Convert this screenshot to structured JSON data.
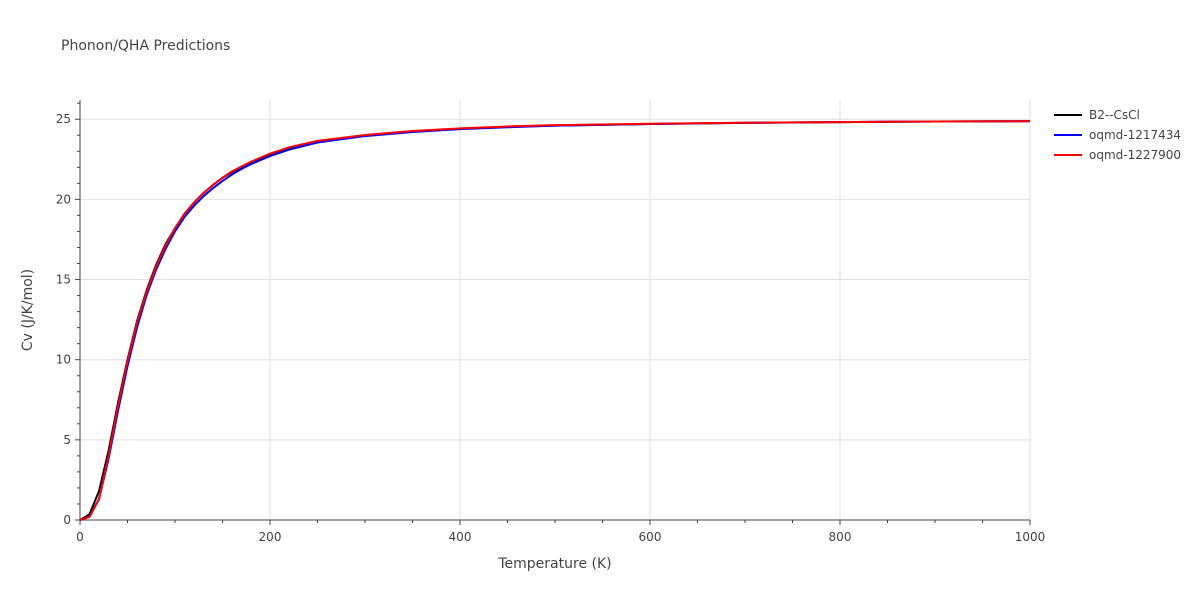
{
  "chart_data": {
    "type": "line",
    "title": "Phonon/QHA Predictions",
    "xlabel": "Temperature (K)",
    "ylabel": "Cv (J/K/mol)",
    "xlim": [
      0,
      1000
    ],
    "ylim": [
      0,
      26.2
    ],
    "xticks": [
      0,
      200,
      400,
      600,
      800,
      1000
    ],
    "yticks": [
      0,
      5,
      10,
      15,
      20,
      25
    ],
    "grid": true,
    "legend_position": "top-right",
    "series": [
      {
        "name": "B2--CsCl",
        "color": "#000000",
        "x": [
          0,
          10,
          20,
          30,
          40,
          50,
          60,
          70,
          80,
          90,
          100,
          110,
          120,
          130,
          140,
          150,
          160,
          170,
          180,
          190,
          200,
          220,
          250,
          300,
          350,
          400,
          450,
          500,
          600,
          700,
          800,
          900,
          1000
        ],
        "y": [
          0,
          0.35,
          1.8,
          4.3,
          7.3,
          10.0,
          12.4,
          14.3,
          15.9,
          17.2,
          18.2,
          19.1,
          19.8,
          20.4,
          20.9,
          21.35,
          21.7,
          22.0,
          22.3,
          22.55,
          22.8,
          23.2,
          23.6,
          24.0,
          24.25,
          24.4,
          24.52,
          24.6,
          24.7,
          24.78,
          24.82,
          24.86,
          24.88
        ]
      },
      {
        "name": "oqmd-1217434",
        "color": "#0000ff",
        "x": [
          0,
          10,
          20,
          30,
          40,
          50,
          60,
          70,
          80,
          90,
          100,
          110,
          120,
          130,
          140,
          150,
          160,
          170,
          180,
          190,
          200,
          220,
          250,
          300,
          350,
          400,
          450,
          500,
          600,
          700,
          800,
          900,
          1000
        ],
        "y": [
          0,
          0.2,
          1.3,
          3.8,
          6.8,
          9.6,
          12.0,
          14.0,
          15.6,
          16.9,
          18.0,
          18.9,
          19.6,
          20.2,
          20.7,
          21.15,
          21.55,
          21.9,
          22.2,
          22.45,
          22.7,
          23.1,
          23.55,
          23.95,
          24.2,
          24.38,
          24.5,
          24.6,
          24.7,
          24.77,
          24.82,
          24.86,
          24.88
        ]
      },
      {
        "name": "oqmd-1227900",
        "color": "#ff0000",
        "x": [
          0,
          10,
          20,
          30,
          40,
          50,
          60,
          70,
          80,
          90,
          100,
          110,
          120,
          130,
          140,
          150,
          160,
          170,
          180,
          190,
          200,
          220,
          250,
          300,
          350,
          400,
          450,
          500,
          600,
          700,
          800,
          900,
          1000
        ],
        "y": [
          0,
          0.2,
          1.3,
          4.0,
          7.1,
          9.9,
          12.3,
          14.2,
          15.8,
          17.1,
          18.2,
          19.1,
          19.8,
          20.4,
          20.9,
          21.35,
          21.75,
          22.05,
          22.35,
          22.6,
          22.85,
          23.25,
          23.65,
          24.02,
          24.27,
          24.43,
          24.55,
          24.63,
          24.72,
          24.78,
          24.82,
          24.86,
          24.88
        ]
      }
    ]
  }
}
